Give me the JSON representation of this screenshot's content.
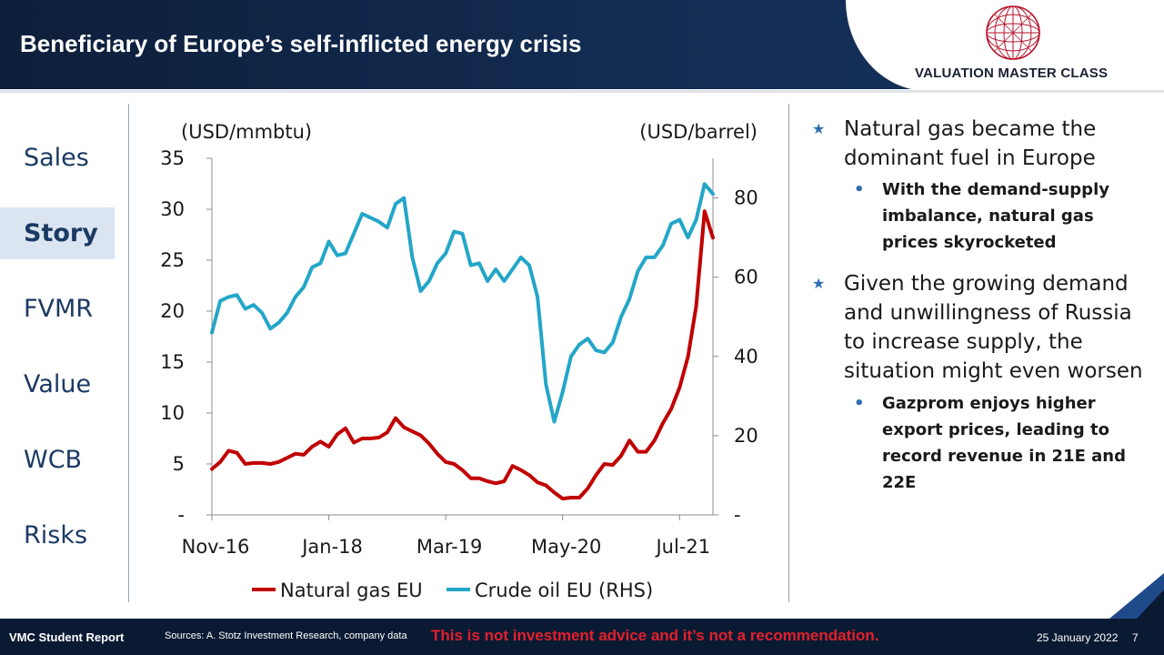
{
  "header": {
    "title": "Beneficiary of Europe’s self-inflicted energy crisis"
  },
  "logo": {
    "text": "VALUATION MASTER CLASS",
    "icon": "globe-icon"
  },
  "nav": {
    "items": [
      {
        "label": "Sales",
        "active": false
      },
      {
        "label": "Story",
        "active": true
      },
      {
        "label": "FVMR",
        "active": false
      },
      {
        "label": "Value",
        "active": false
      },
      {
        "label": "WCB",
        "active": false
      },
      {
        "label": "Risks",
        "active": false
      }
    ]
  },
  "chart_data": {
    "type": "line",
    "left_unit": "(USD/mmbtu)",
    "right_unit": "(USD/barrel)",
    "x_ticks": [
      "Nov-16",
      "Jan-18",
      "Mar-19",
      "May-20",
      "Jul-21"
    ],
    "x_tick_index": [
      0,
      14,
      28,
      42,
      56
    ],
    "y_left": {
      "range": [
        0,
        35
      ],
      "ticks": [
        "-",
        "5",
        "10",
        "15",
        "20",
        "25",
        "30",
        "35"
      ]
    },
    "y_right": {
      "range": [
        0,
        90
      ],
      "ticks": [
        "-",
        "20",
        "40",
        "60",
        "80"
      ]
    },
    "series": [
      {
        "name": "Natural gas EU",
        "axis": "left",
        "color": "#c00000",
        "values": [
          4.5,
          5.2,
          6.3,
          6.1,
          5.0,
          5.1,
          5.1,
          5.0,
          5.2,
          5.6,
          6.0,
          5.9,
          6.7,
          7.2,
          6.7,
          7.9,
          8.5,
          7.1,
          7.5,
          7.5,
          7.6,
          8.1,
          9.5,
          8.6,
          8.2,
          7.8,
          7.0,
          6.0,
          5.2,
          5.0,
          4.4,
          3.6,
          3.6,
          3.3,
          3.1,
          3.3,
          4.8,
          4.4,
          3.9,
          3.2,
          2.9,
          2.2,
          1.6,
          1.7,
          1.7,
          2.6,
          3.9,
          5.0,
          4.9,
          5.8,
          7.3,
          6.2,
          6.2,
          7.3,
          9.0,
          10.4,
          12.5,
          15.5,
          20.5,
          29.8,
          27.2
        ]
      },
      {
        "name": "Crude oil EU (RHS)",
        "axis": "right",
        "color": "#23a6c8",
        "values": [
          46,
          54,
          55,
          55.5,
          52,
          53,
          51,
          47,
          48.5,
          51,
          55,
          57.5,
          62.5,
          63.5,
          69,
          65.5,
          66,
          71,
          76,
          75,
          74,
          72.5,
          78.5,
          80,
          65,
          56.5,
          59,
          63.5,
          66,
          71.5,
          71,
          63,
          63.5,
          59,
          62,
          59,
          62,
          65,
          63,
          55,
          33,
          23.5,
          31,
          40,
          43,
          44.5,
          41.5,
          41,
          43.5,
          50,
          54.5,
          61.5,
          65,
          65,
          68,
          73.5,
          74.5,
          70,
          74.5,
          83.5,
          81
        ]
      }
    ],
    "legend_position": "bottom"
  },
  "bullets": [
    {
      "level": 1,
      "text": "Natural gas became the dominant fuel in Europe"
    },
    {
      "level": 2,
      "text": "With the demand-supply imbalance, natural gas prices skyrocketed"
    },
    {
      "level": 1,
      "text": "Given the growing demand and unwillingness of Russia to increase supply, the situation might even worsen"
    },
    {
      "level": 2,
      "text": "Gazprom enjoys higher export prices, leading to record revenue in 21E and 22E"
    }
  ],
  "footer": {
    "left": "VMC Student Report",
    "sources": "Sources: A. Stotz Investment Research, company data",
    "warning": "This is not investment advice and it’s not a recommendation.",
    "date": "25 January 2022",
    "page": "7"
  },
  "colors": {
    "header_bg": "#132c52",
    "nav_text": "#1b3a63",
    "nav_active_bg": "#dbe5f1",
    "accent": "#2f6fb3",
    "warning": "#e2202c"
  }
}
